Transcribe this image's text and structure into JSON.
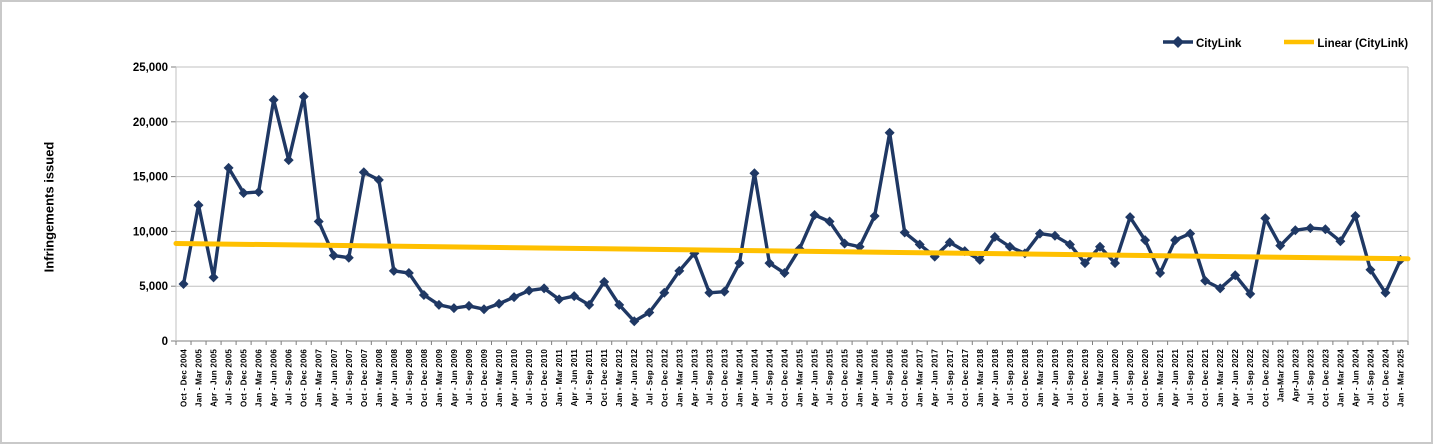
{
  "figure": {
    "background": "#ffffff",
    "border_color": "#c9c9c9"
  },
  "y_axis": {
    "title": "Infringements issued",
    "tick_labels": [
      "0",
      "5,000",
      "10,000",
      "15,000",
      "20,000",
      "25,000"
    ]
  },
  "legend": {
    "position": "top-right",
    "citylink_label": "CityLink",
    "linear_label": "Linear (CityLink)"
  },
  "colors": {
    "series": "#1f3864",
    "trendline": "#ffc000",
    "gridline": "#c0c0c0",
    "axis": "#7f7f7f"
  },
  "chart_data": {
    "type": "line",
    "title": "",
    "xlabel": "",
    "ylabel": "Infringements issued",
    "ylim": [
      0,
      25000
    ],
    "yticks": [
      0,
      5000,
      10000,
      15000,
      20000,
      25000
    ],
    "grid": true,
    "legend_position": "top-right",
    "categories": [
      "Oct - Dec 2004",
      "Jan - Mar 2005",
      "Apr - Jun 2005",
      "Jul - Sep 2005",
      "Oct - Dec 2005",
      "Jan - Mar 2006",
      "Apr - Jun 2006",
      "Jul - Sep 2006",
      "Oct - Dec 2006",
      "Jan - Mar 2007",
      "Apr - Jun 2007",
      "Jul - Sep 2007",
      "Oct - Dec 2007",
      "Jan - Mar 2008",
      "Apr - Jun 2008",
      "Jul - Sep 2008",
      "Oct - Dec 2008",
      "Jan - Mar 2009",
      "Apr - Jun 2009",
      "Jul - Sep 2009",
      "Oct - Dec 2009",
      "Jan - Mar 2010",
      "Apr - Jun 2010",
      "Jul - Sep 2010",
      "Oct - Dec 2010",
      "Jan - Mar 2011",
      "Apr - Jun 2011",
      "Jul - Sep 2011",
      "Oct - Dec 2011",
      "Jan - Mar 2012",
      "Apr - Jun 2012",
      "Jul - Sep 2012",
      "Oct - Dec 2012",
      "Jan - Mar 2013",
      "Apr - Jun 2013",
      "Jul - Sep 2013",
      "Oct - Dec 2013",
      "Jan - Mar 2014",
      "Apr - Jun 2014",
      "Jul - Sep 2014",
      "Oct - Dec 2014",
      "Jan - Mar 2015",
      "Apr - Jun 2015",
      "Jul - Sep 2015",
      "Oct - Dec 2015",
      "Jan - Mar 2016",
      "Apr - Jun 2016",
      "Jul - Sep 2016",
      "Oct - Dec 2016",
      "Jan - Mar 2017",
      "Apr - Jun 2017",
      "Jul - Sep 2017",
      "Oct - Dec 2017",
      "Jan - Mar 2018",
      "Apr - Jun 2018",
      "Jul - Sep 2018",
      "Oct - Dec 2018",
      "Jan - Mar 2019",
      "Apr - Jun 2019",
      "Jul - Sep 2019",
      "Oct - Dec 2019",
      "Jan - Mar 2020",
      "Apr - Jun 2020",
      "Jul - Sep 2020",
      "Oct - Dec 2020",
      "Jan - Mar 2021",
      "Apr - Jun 2021",
      "Jul - Sep 2021",
      "Oct - Dec 2021",
      "Jan - Mar 2022",
      "Apr - Jun 2022",
      "Jul - Sep 2022",
      "Oct - Dec 2022",
      "Jan-Mar 2023",
      "Apr-Jun 2023",
      "Jul - Sep 2023",
      "Oct - Dec 2023",
      "Jan - Mar 2024",
      "Apr - Jun 2024",
      "Jul - Sep 2024",
      "Oct - Dec 2024",
      "Jan - Mar 2025"
    ],
    "series": [
      {
        "name": "CityLink",
        "color": "#1f3864",
        "marker": "diamond",
        "values": [
          5200,
          12400,
          5800,
          15800,
          13500,
          13600,
          22000,
          16500,
          22300,
          10900,
          7800,
          7600,
          15400,
          14700,
          6400,
          6200,
          4200,
          3300,
          3000,
          3200,
          2900,
          3400,
          4000,
          4600,
          4800,
          3800,
          4100,
          3300,
          5400,
          3300,
          1800,
          2600,
          4400,
          6400,
          8000,
          4400,
          4500,
          7100,
          15300,
          7100,
          6200,
          8400,
          11500,
          10900,
          8900,
          8600,
          11400,
          19000,
          9900,
          8800,
          7700,
          9000,
          8200,
          7400,
          9500,
          8600,
          8000,
          9800,
          9600,
          8800,
          7100,
          8600,
          7100,
          11300,
          9200,
          6200,
          9200,
          9800,
          5500,
          4800,
          6000,
          4300,
          11200,
          8700,
          10100,
          10300,
          10200,
          9100,
          11400,
          6500,
          4400,
          7400
        ]
      },
      {
        "name": "Linear (CityLink)",
        "type": "trendline",
        "color": "#ffc000",
        "start_value": 8900,
        "end_value": 7500
      }
    ]
  }
}
